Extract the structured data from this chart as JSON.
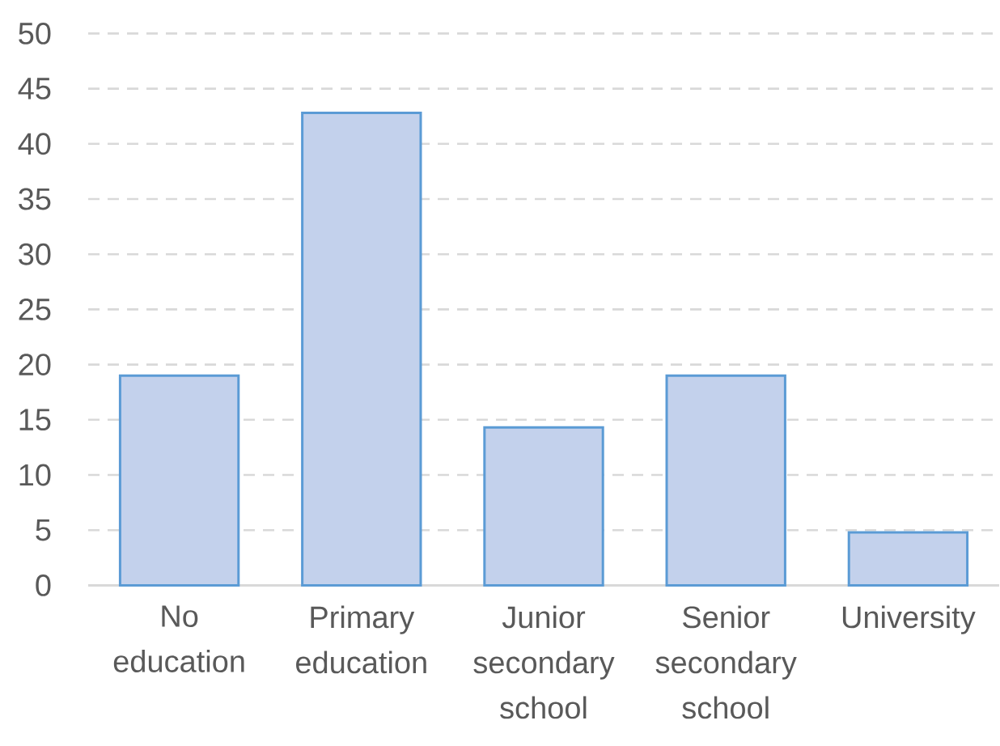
{
  "chart_data": {
    "type": "bar",
    "categories": [
      "No education",
      "Primary education",
      "Junior secondary school",
      "Senior secondary school",
      "University"
    ],
    "values": [
      19.0,
      42.8,
      14.3,
      19.0,
      4.8
    ],
    "color": "#c3d1ec",
    "ylim": [
      0,
      50
    ],
    "yticks": [
      0,
      5,
      10,
      15,
      20,
      25,
      30,
      35,
      40,
      45,
      50
    ],
    "grid": "y"
  }
}
